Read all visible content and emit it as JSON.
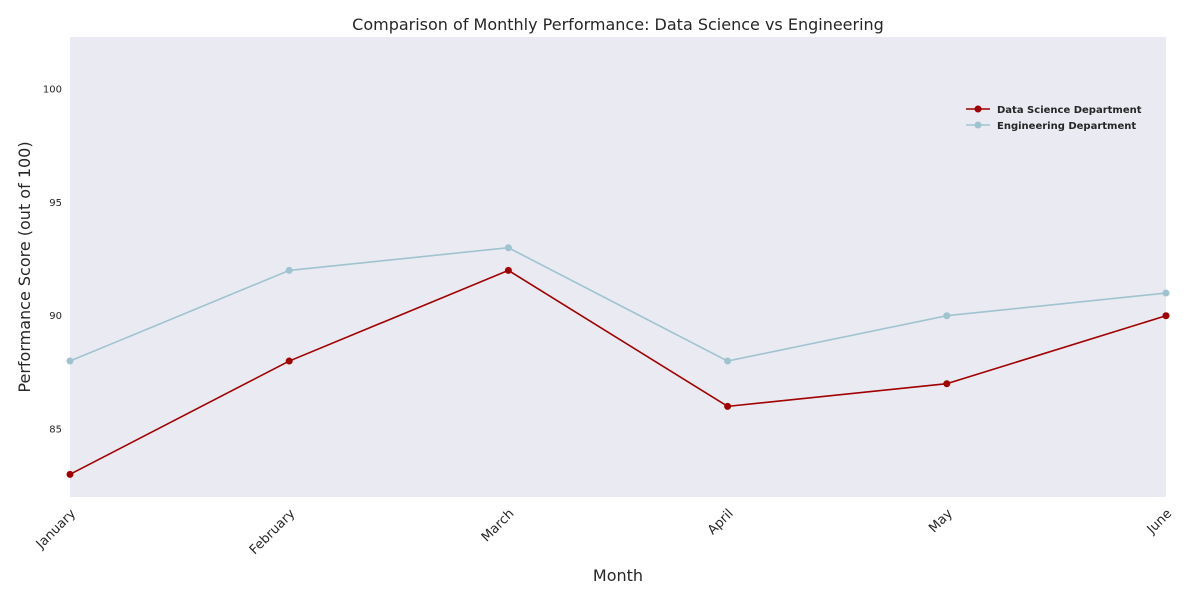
{
  "chart_data": {
    "type": "line",
    "title": "Comparison of Monthly Performance: Data Science vs Engineering",
    "xlabel": "Month",
    "ylabel": "Performance Score (out of 100)",
    "categories": [
      "January",
      "February",
      "March",
      "April",
      "May",
      "June"
    ],
    "series": [
      {
        "name": "Data Science Department",
        "values": [
          83,
          88,
          92,
          86,
          87,
          90
        ],
        "color": "#a00000",
        "marker": "circle"
      },
      {
        "name": "Engineering Department",
        "values": [
          88,
          92,
          93,
          88,
          90,
          91
        ],
        "color": "#9fc4d0",
        "marker": "circle"
      }
    ],
    "ylim": [
      82,
      102.3
    ],
    "yticks": [
      85,
      90,
      95,
      100
    ],
    "grid": false,
    "legend_position": "upper right",
    "background_color": "#eaeaf2",
    "xtick_rotation": -45
  }
}
